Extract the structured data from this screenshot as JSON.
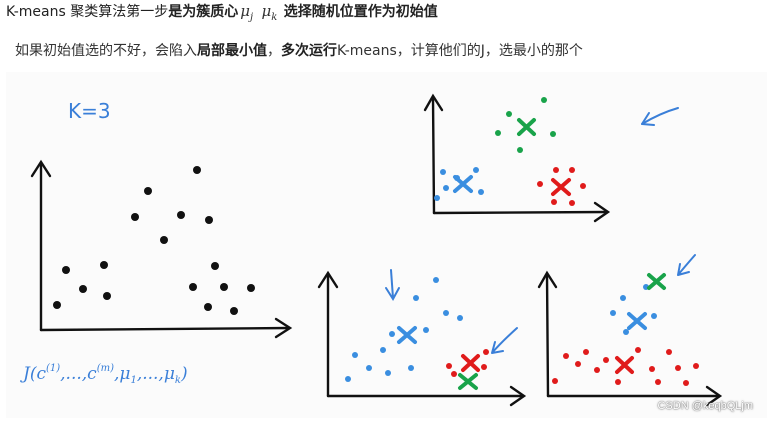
{
  "header": {
    "title_prefix": "K-means 聚类算法第一步",
    "title_bold": "是为簇质心",
    "mu_j": "μ",
    "mu_j_sub": "j",
    "mu_k": "μ",
    "mu_k_sub": "k",
    "title_suffix": "选择随机位置作为初始值"
  },
  "note": {
    "part1": "如果初始值选的不好，会陷入",
    "bold1": "局部最小值",
    "part2": "，",
    "bold2": "多次运行",
    "part3": "K-means，计算他们的J，选最小的那个"
  },
  "figure": {
    "k_label": "K=3",
    "cost_label": "J(c",
    "cost_sup1": "(1)",
    "cost_mid": ",...,c",
    "cost_sup2": "(m)",
    "cost_tail": ",μ",
    "cost_sub1": "1",
    "cost_mid2": ",...,μ",
    "cost_sub2": "k",
    "cost_close": ")",
    "watermark": "CSDN @keqbQLjm",
    "colors": {
      "black": "#111111",
      "blue": "#3a8ee0",
      "green": "#19a34a",
      "red": "#e01b1b",
      "ink": "#3a7fd8"
    }
  }
}
